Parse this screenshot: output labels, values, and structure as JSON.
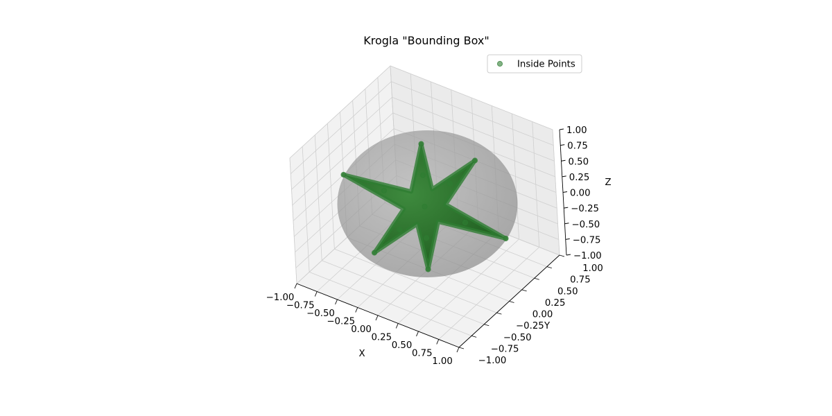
{
  "chart_data": {
    "type": "scatter",
    "projection": "3d",
    "title": "Krogla \"Bounding Box\"",
    "xlabel": "X",
    "ylabel": "Y",
    "zlabel": "Z",
    "xlim": [
      -1.0,
      1.0
    ],
    "ylim": [
      -1.0,
      1.0
    ],
    "zlim": [
      -1.0,
      1.0
    ],
    "xticks": [
      "−1.00",
      "−0.75",
      "−0.50",
      "−0.25",
      "0.00",
      "0.25",
      "0.50",
      "0.75",
      "1.00"
    ],
    "yticks": [
      "−1.00",
      "−0.75",
      "−0.50",
      "−0.25",
      "0.00",
      "0.25",
      "0.50",
      "0.75",
      "1.00"
    ],
    "zticks": [
      "−1.00",
      "−0.75",
      "−0.50",
      "−0.25",
      "0.00",
      "0.25",
      "0.50",
      "0.75",
      "1.00"
    ],
    "grid": true,
    "legend_position": "top-right",
    "surface": {
      "shape": "sphere",
      "radius": 1.0,
      "color": "#808080",
      "opacity": 0.5
    },
    "series": [
      {
        "name": "Inside Points",
        "color": "#2e7d32",
        "marker": "circle",
        "opacity": 0.6,
        "shape": "six-armed star (astroid) inside unit sphere",
        "sample_points": [
          [
            1.0,
            0,
            0
          ],
          [
            -1.0,
            0,
            0
          ],
          [
            0,
            1.0,
            0
          ],
          [
            0,
            -1.0,
            0
          ],
          [
            0,
            0,
            1.0
          ],
          [
            0,
            0,
            -1.0
          ],
          [
            0.5,
            0,
            0
          ],
          [
            -0.5,
            0,
            0
          ],
          [
            0,
            0.5,
            0
          ],
          [
            0,
            -0.5,
            0
          ],
          [
            0,
            0,
            0.5
          ],
          [
            0,
            0,
            -0.5
          ],
          [
            0,
            0,
            0
          ]
        ]
      }
    ]
  }
}
